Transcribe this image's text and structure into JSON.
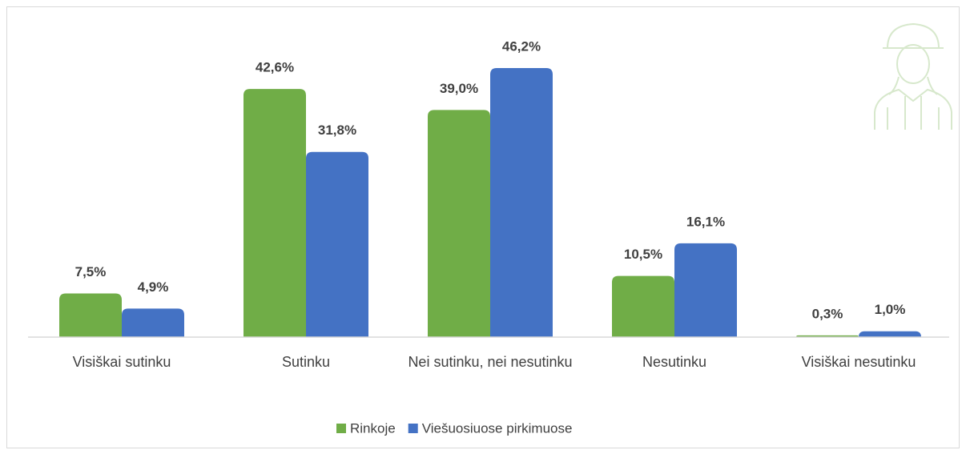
{
  "chart_data": {
    "type": "bar",
    "categories": [
      "Visiškai sutinku",
      "Sutinku",
      "Nei sutinku, nei nesutinku",
      "Nesutinku",
      "Visiškai nesutinku"
    ],
    "series": [
      {
        "name": "Rinkoje",
        "color": "#70ad47",
        "values": [
          7.5,
          42.6,
          39.0,
          10.5,
          0.3
        ],
        "value_labels": [
          "7,5%",
          "42,6%",
          "39,0%",
          "10,5%",
          "0,3%"
        ]
      },
      {
        "name": "Viešuosiuose pirkimuose",
        "color": "#4472c4",
        "values": [
          4.9,
          31.8,
          46.2,
          16.1,
          1.0
        ],
        "value_labels": [
          "4,9%",
          "31,8%",
          "46,2%",
          "16,1%",
          "1,0%"
        ]
      }
    ],
    "legend": "bottom"
  }
}
